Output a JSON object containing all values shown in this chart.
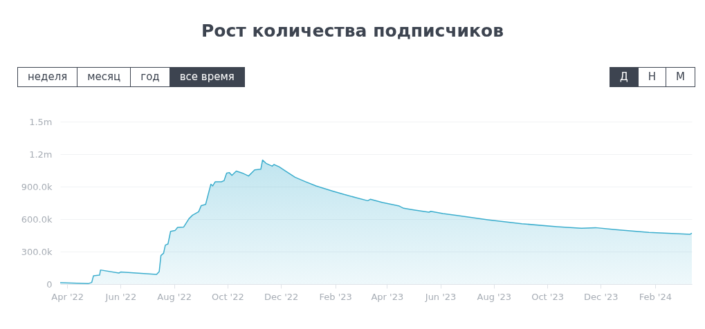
{
  "chart_data": {
    "type": "area",
    "title": "Рост количества подписчиков",
    "annotations": [
      "неделя",
      "месяц",
      "год",
      "все время",
      "Д",
      "Н",
      "М"
    ],
    "x": [
      "2022-03-24",
      "2022-04-25",
      "2022-04-29",
      "2022-05-01",
      "2022-05-08",
      "2022-05-09",
      "2022-05-30",
      "2022-06-01",
      "2022-07-12",
      "2022-07-15",
      "2022-07-17",
      "2022-07-20",
      "2022-07-22",
      "2022-07-25",
      "2022-07-28",
      "2022-08-02",
      "2022-08-05",
      "2022-08-12",
      "2022-08-18",
      "2022-08-22",
      "2022-08-29",
      "2022-09-01",
      "2022-09-06",
      "2022-09-12",
      "2022-09-14",
      "2022-09-17",
      "2022-09-24",
      "2022-09-27",
      "2022-09-30",
      "2022-10-03",
      "2022-10-06",
      "2022-10-11",
      "2022-10-18",
      "2022-10-25",
      "2022-11-01",
      "2022-11-08",
      "2022-11-10",
      "2022-11-14",
      "2022-11-21",
      "2022-11-23",
      "2022-11-29",
      "2022-12-07",
      "2022-12-17",
      "2022-12-28",
      "2023-01-10",
      "2023-01-29",
      "2023-02-11",
      "2023-02-24",
      "2023-03-10",
      "2023-03-13",
      "2023-03-27",
      "2023-04-15",
      "2023-04-20",
      "2023-05-03",
      "2023-05-19",
      "2023-05-21",
      "2023-06-04",
      "2023-06-23",
      "2023-07-25",
      "2023-09-02",
      "2023-10-12",
      "2023-11-09",
      "2023-11-25",
      "2023-12-18",
      "2024-01-25",
      "2024-03-04",
      "2024-03-12",
      "2024-03-14"
    ],
    "series": [
      {
        "color": "#3aadcd",
        "values": [
          13000,
          4000,
          15000,
          77000,
          83000,
          130000,
          102000,
          111000,
          89000,
          115000,
          264000,
          285000,
          360000,
          370000,
          487000,
          494000,
          523000,
          527000,
          604000,
          636000,
          668000,
          725000,
          736000,
          923000,
          906000,
          945000,
          945000,
          955000,
          1025000,
          1030000,
          1004000,
          1044000,
          1025000,
          998000,
          1055000,
          1061000,
          1145000,
          1115000,
          1089000,
          1104000,
          1083000,
          1040000,
          987000,
          949000,
          906000,
          859000,
          828000,
          800000,
          770000,
          783000,
          753000,
          721000,
          700000,
          683000,
          664000,
          672000,
          651000,
          630000,
          594000,
          557000,
          530000,
          515000,
          521000,
          502000,
          477000,
          462000,
          460000,
          470000
        ]
      }
    ],
    "xlim": [
      "2022-03-24",
      "2024-03-14"
    ],
    "xticks": [
      {
        "value": "2022-04-01",
        "label": "Apr '22"
      },
      {
        "value": "2022-06-01",
        "label": "Jun '22"
      },
      {
        "value": "2022-08-01",
        "label": "Aug '22"
      },
      {
        "value": "2022-10-01",
        "label": "Oct '22"
      },
      {
        "value": "2022-12-01",
        "label": "Dec '22"
      },
      {
        "value": "2023-02-01",
        "label": "Feb '23"
      },
      {
        "value": "2023-04-01",
        "label": "Apr '23"
      },
      {
        "value": "2023-06-01",
        "label": "Jun '23"
      },
      {
        "value": "2023-08-01",
        "label": "Aug '23"
      },
      {
        "value": "2023-10-01",
        "label": "Oct '23"
      },
      {
        "value": "2023-12-01",
        "label": "Dec '23"
      },
      {
        "value": "2024-02-01",
        "label": "Feb '24"
      }
    ],
    "ylim": [
      0,
      1500000
    ],
    "yticks": [
      0,
      {
        "value": 300000,
        "label": "300.0k"
      },
      {
        "value": 600000,
        "label": "600.0k"
      },
      {
        "value": 900000,
        "label": "900.0k"
      },
      {
        "value": 1200000,
        "label": "1.2m"
      },
      {
        "value": 1500000,
        "label": "1.5m"
      }
    ],
    "grid": "y"
  }
}
